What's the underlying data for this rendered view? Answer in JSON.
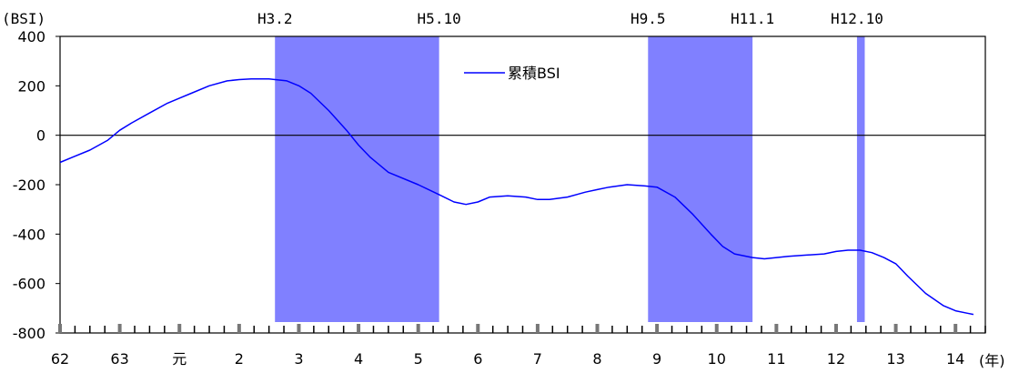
{
  "chart_data": {
    "type": "line",
    "title": "",
    "ylabel": "(BSI)",
    "xlabel": "(年)",
    "ylim": [
      -800,
      400
    ],
    "xlim": [
      0,
      15.5
    ],
    "yticks": [
      -800,
      -600,
      -400,
      -200,
      0,
      200,
      400
    ],
    "x_tick_labels": [
      "62",
      "63",
      "元",
      "2",
      "3",
      "4",
      "5",
      "6",
      "7",
      "8",
      "9",
      "10",
      "11",
      "12",
      "13",
      "14"
    ],
    "grid": false,
    "legend": {
      "position": "top-center",
      "entries": [
        "累積BSI"
      ]
    },
    "shaded_periods": [
      {
        "label_start": "H3.2",
        "label_end": "H5.10",
        "start": 3.6,
        "end": 6.35
      },
      {
        "label_start": "H9.5",
        "label_end": "H11.1",
        "start": 9.85,
        "end": 11.6
      },
      {
        "label_start": "H12.10",
        "label_end": "",
        "start": 13.35,
        "end": 13.48
      }
    ],
    "series": [
      {
        "name": "累積BSI",
        "color": "#0000ff",
        "x": [
          0.0,
          0.2,
          0.5,
          0.8,
          1.0,
          1.2,
          1.5,
          1.8,
          2.0,
          2.2,
          2.5,
          2.8,
          3.0,
          3.2,
          3.5,
          3.8,
          4.0,
          4.2,
          4.5,
          4.8,
          5.0,
          5.2,
          5.5,
          6.0,
          6.35,
          6.6,
          6.8,
          7.0,
          7.2,
          7.5,
          7.8,
          8.0,
          8.2,
          8.5,
          8.8,
          9.0,
          9.2,
          9.5,
          9.8,
          10.0,
          10.3,
          10.6,
          10.9,
          11.1,
          11.3,
          11.6,
          11.8,
          12.0,
          12.2,
          12.5,
          12.8,
          13.0,
          13.2,
          13.4,
          13.6,
          13.8,
          14.0,
          14.2,
          14.5,
          14.8,
          15.0,
          15.2,
          15.3
        ],
        "y": [
          -110,
          -90,
          -60,
          -20,
          20,
          50,
          90,
          130,
          150,
          170,
          200,
          220,
          225,
          228,
          228,
          220,
          200,
          170,
          100,
          20,
          -40,
          -90,
          -150,
          -200,
          -240,
          -270,
          -280,
          -270,
          -250,
          -245,
          -250,
          -260,
          -260,
          -250,
          -230,
          -220,
          -210,
          -200,
          -205,
          -210,
          -250,
          -320,
          -400,
          -450,
          -480,
          -495,
          -500,
          -495,
          -490,
          -485,
          -480,
          -470,
          -465,
          -465,
          -475,
          -495,
          -520,
          -570,
          -640,
          -690,
          -710,
          -720,
          -725
        ]
      }
    ]
  }
}
